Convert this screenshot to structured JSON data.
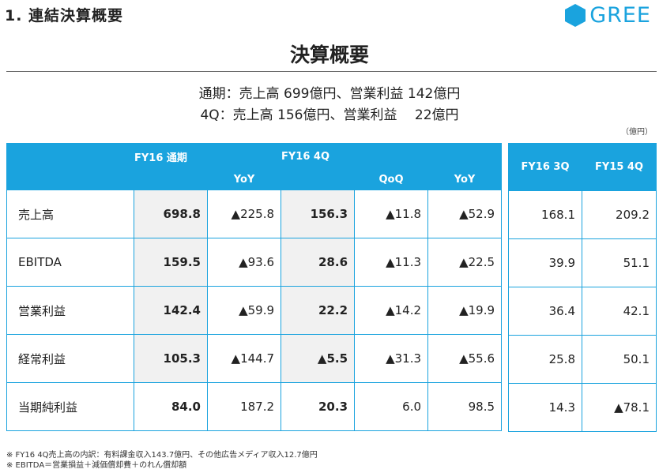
{
  "header": {
    "section_title": "1. 連結決算概要",
    "logo_text": "GREE",
    "main_title": "決算概要"
  },
  "summary": {
    "line1": "通期：売上高 699億円、営業利益 142億円",
    "line2": "4Q：売上高 156億円、営業利益　 22億円"
  },
  "unit_label": "（億円）",
  "table": {
    "groups": {
      "fy16_full": "FY16 通期",
      "fy16_4q": "FY16 4Q",
      "fy16_3q": "FY16 3Q",
      "fy15_4q": "FY15 4Q"
    },
    "sub_headers": {
      "full_yoy": "YoY",
      "q4_qoq": "QoQ",
      "q4_yoy": "YoY"
    },
    "rows": [
      {
        "label": "売上高",
        "full": "698.8",
        "full_yoy": "▲225.8",
        "q4": "156.3",
        "q4_qoq": "▲11.8",
        "q4_yoy": "▲52.9",
        "q3": "168.1",
        "fy15_q4": "209.2"
      },
      {
        "label": "EBITDA",
        "full": "159.5",
        "full_yoy": "▲93.6",
        "q4": "28.6",
        "q4_qoq": "▲11.3",
        "q4_yoy": "▲22.5",
        "q3": "39.9",
        "fy15_q4": "51.1"
      },
      {
        "label": "営業利益",
        "full": "142.4",
        "full_yoy": "▲59.9",
        "q4": "22.2",
        "q4_qoq": "▲14.2",
        "q4_yoy": "▲19.9",
        "q3": "36.4",
        "fy15_q4": "42.1"
      },
      {
        "label": "経常利益",
        "full": "105.3",
        "full_yoy": "▲144.7",
        "q4": "▲5.5",
        "q4_qoq": "▲31.3",
        "q4_yoy": "▲55.6",
        "q3": "25.8",
        "fy15_q4": "50.1"
      },
      {
        "label": "当期純利益",
        "full": "84.0",
        "full_yoy": "187.2",
        "q4": "20.3",
        "q4_qoq": "6.0",
        "q4_yoy": "98.5",
        "q3": "14.3",
        "fy15_q4": "▲78.1"
      }
    ]
  },
  "footnotes": [
    "※ FY16 4Q売上高の内訳：有料課金収入143.7億円、その他広告メディア収入12.7億円",
    "※ EBITDA＝営業損益＋減価償却費＋のれん償却額"
  ],
  "colors": {
    "accent": "#1aa3de",
    "highlight_column": "#f1f1f1"
  }
}
